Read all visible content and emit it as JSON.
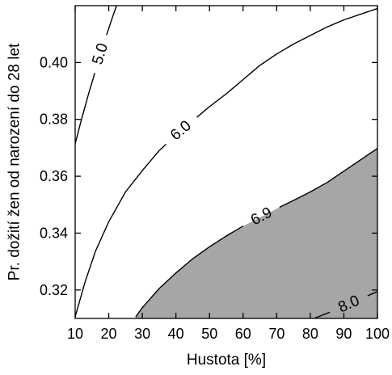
{
  "chart_data": {
    "type": "contour",
    "xlabel": "Hustota [%]",
    "ylabel": "Pr. dožití žen od narození do 28 let",
    "xlim": [
      10,
      100
    ],
    "ylim": [
      0.31,
      0.42
    ],
    "xticks": [
      "10",
      "20",
      "30",
      "40",
      "50",
      "60",
      "70",
      "80",
      "90",
      "100"
    ],
    "yticks": [
      "0.32",
      "0.34",
      "0.36",
      "0.38",
      "0.40"
    ],
    "grid": false,
    "shaded_region": {
      "description": "area below the 6.9 contour",
      "color": "#a6a6a6"
    },
    "contours": [
      {
        "label": "5.0",
        "points": [
          [
            10,
            0.3715
          ],
          [
            12,
            0.3805
          ],
          [
            14,
            0.389
          ],
          [
            16,
            0.397
          ],
          [
            18,
            0.405
          ],
          [
            20,
            0.412
          ],
          [
            22,
            0.419
          ],
          [
            22.7,
            0.421
          ]
        ]
      },
      {
        "label": "6.0",
        "points": [
          [
            10,
            0.3106
          ],
          [
            13,
            0.323
          ],
          [
            16,
            0.3335
          ],
          [
            20,
            0.344
          ],
          [
            25,
            0.3545
          ],
          [
            30,
            0.362
          ],
          [
            35,
            0.369
          ],
          [
            40,
            0.3745
          ],
          [
            45,
            0.3795
          ],
          [
            50,
            0.3845
          ],
          [
            55,
            0.389
          ],
          [
            60,
            0.394
          ],
          [
            65,
            0.399
          ],
          [
            70,
            0.403
          ],
          [
            75,
            0.4065
          ],
          [
            80,
            0.4095
          ],
          [
            85,
            0.4125
          ],
          [
            90,
            0.415
          ],
          [
            95,
            0.417
          ],
          [
            100,
            0.419
          ]
        ]
      },
      {
        "label": "6.9",
        "points": [
          [
            28,
            0.3105
          ],
          [
            30,
            0.3138
          ],
          [
            35,
            0.3205
          ],
          [
            40,
            0.326
          ],
          [
            45,
            0.331
          ],
          [
            50,
            0.3352
          ],
          [
            55,
            0.339
          ],
          [
            60,
            0.3425
          ],
          [
            65,
            0.3455
          ],
          [
            70,
            0.3486
          ],
          [
            75,
            0.3515
          ],
          [
            80,
            0.3545
          ],
          [
            85,
            0.3578
          ],
          [
            90,
            0.3618
          ],
          [
            95,
            0.3658
          ],
          [
            100,
            0.3698
          ]
        ]
      },
      {
        "label": "8.0",
        "points": [
          [
            81.5,
            0.3102
          ],
          [
            85,
            0.3118
          ],
          [
            90,
            0.3142
          ],
          [
            95,
            0.3168
          ],
          [
            100,
            0.3195
          ]
        ]
      }
    ]
  }
}
